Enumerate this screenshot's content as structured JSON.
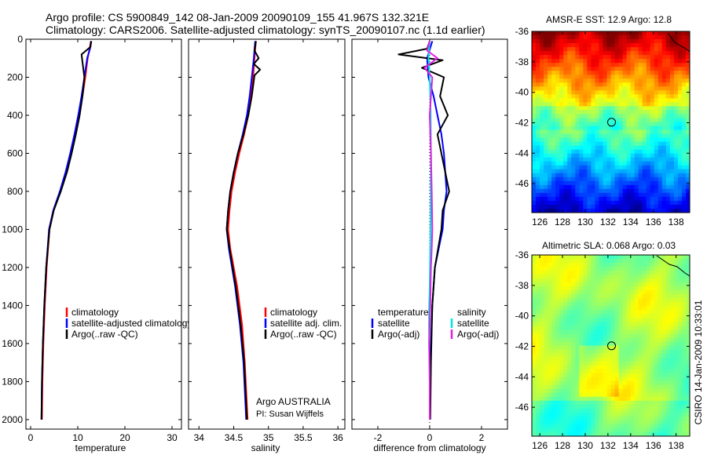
{
  "header": {
    "line1": "Argo profile: CS 5900849_142 08-Jan-2009 20090109_155 41.967S 132.321E",
    "line2": "Climatology: CARS2006. Satellite-adjusted climatology: synTS_20090107.nc (1.1d earlier)"
  },
  "side_label": "CSIRO 14-Jan-2009 10:33:01",
  "credit": {
    "line1": "Argo AUSTRALIA",
    "line2": "PI: Susan Wijffels"
  },
  "colors": {
    "climatology": "#ff0000",
    "satellite": "#0000ff",
    "argo": "#000000",
    "sat_salinity": "#00e5e5",
    "argo_salinity": "#e020e0"
  },
  "chart_data": [
    {
      "type": "line",
      "xlabel": "temperature",
      "xlim": [
        -1,
        32
      ],
      "xticks": [
        0,
        10,
        20,
        30
      ],
      "ylim": [
        2050,
        0
      ],
      "yticks": [
        0,
        200,
        400,
        600,
        800,
        1000,
        1200,
        1400,
        1600,
        1800,
        2000
      ],
      "legend": [
        "climatology",
        "satellite-adjusted climatology",
        "Argo(..raw -QC)"
      ],
      "series": [
        {
          "name": "climatology",
          "color": "red",
          "x": [
            12.8,
            12.5,
            12.1,
            11.6,
            11.0,
            10.3,
            9.5,
            8.6,
            7.6,
            6.3,
            4.9,
            4.0,
            3.4,
            3.0,
            2.7,
            2.5,
            2.4
          ],
          "y": [
            10,
            50,
            100,
            200,
            300,
            400,
            500,
            600,
            700,
            800,
            900,
            1000,
            1200,
            1400,
            1600,
            1800,
            2000
          ]
        },
        {
          "name": "satellite-adjusted climatology",
          "color": "blue",
          "x": [
            12.9,
            12.6,
            12.0,
            11.4,
            10.8,
            10.1,
            9.3,
            8.4,
            7.4,
            6.2,
            4.8,
            3.9,
            3.3,
            2.9,
            2.6,
            2.4,
            2.3
          ],
          "y": [
            10,
            50,
            100,
            200,
            300,
            400,
            500,
            600,
            700,
            800,
            900,
            1000,
            1200,
            1400,
            1600,
            1800,
            2000
          ]
        },
        {
          "name": "Argo(..raw -QC)",
          "color": "black",
          "x": [
            12.8,
            12.7,
            10.8,
            11.4,
            11.0,
            10.4,
            9.6,
            8.7,
            7.7,
            6.4,
            4.9,
            4.0,
            3.3,
            2.9,
            2.6,
            2.4,
            2.3
          ],
          "y": [
            10,
            40,
            80,
            200,
            300,
            400,
            500,
            600,
            700,
            800,
            900,
            1000,
            1200,
            1400,
            1600,
            1800,
            2000
          ]
        }
      ]
    },
    {
      "type": "line",
      "xlabel": "salinity",
      "xlim": [
        33.85,
        36.1
      ],
      "xticks": [
        34,
        34.5,
        35,
        35.5,
        36
      ],
      "ylim": [
        2050,
        0
      ],
      "yticks": [
        0,
        200,
        400,
        600,
        800,
        1000,
        1200,
        1400,
        1600,
        1800,
        2000
      ],
      "legend": [
        "climatology",
        "satellite adj. clim.",
        "Argo(..raw -QC)"
      ],
      "series": [
        {
          "name": "climatology",
          "color": "red",
          "x": [
            34.82,
            34.81,
            34.8,
            34.78,
            34.75,
            34.71,
            34.65,
            34.58,
            34.52,
            34.47,
            34.44,
            34.42,
            34.45,
            34.55,
            34.62,
            34.66,
            34.7
          ],
          "y": [
            10,
            50,
            100,
            200,
            300,
            400,
            500,
            600,
            700,
            800,
            900,
            1000,
            1100,
            1300,
            1500,
            1700,
            2000
          ]
        },
        {
          "name": "satellite adj. clim.",
          "color": "blue",
          "x": [
            34.81,
            34.8,
            34.79,
            34.76,
            34.73,
            34.69,
            34.63,
            34.56,
            34.5,
            34.45,
            34.42,
            34.4,
            34.43,
            34.52,
            34.59,
            34.64,
            34.68
          ],
          "y": [
            10,
            50,
            100,
            200,
            300,
            400,
            500,
            600,
            700,
            800,
            900,
            1000,
            1100,
            1300,
            1500,
            1700,
            2000
          ]
        },
        {
          "name": "Argo(..raw -QC)",
          "color": "black",
          "x": [
            34.82,
            34.8,
            34.86,
            34.79,
            34.88,
            34.8,
            34.76,
            34.71,
            34.64,
            34.56,
            34.5,
            34.45,
            34.42,
            34.4,
            34.44,
            34.53,
            34.6,
            34.65,
            34.69
          ],
          "y": [
            10,
            60,
            100,
            130,
            160,
            190,
            300,
            400,
            500,
            600,
            700,
            800,
            900,
            1000,
            1100,
            1300,
            1500,
            1700,
            2000
          ]
        }
      ]
    },
    {
      "type": "line",
      "xlabel": "difference from climatology",
      "xlim": [
        -3.0,
        3.0
      ],
      "xticks": [
        -2,
        0,
        2
      ],
      "ylim": [
        2050,
        0
      ],
      "yticks": [
        0,
        200,
        400,
        600,
        800,
        1000,
        1200,
        1400,
        1600,
        1800,
        2000
      ],
      "legend_groups": [
        {
          "title": "temperature",
          "items": [
            "satellite",
            "Argo(-adj)"
          ]
        },
        {
          "title": "salinity",
          "items": [
            "satellite",
            "Argo(-adj)"
          ]
        }
      ],
      "series": [
        {
          "name": "satellite",
          "group": "temperature",
          "color": "blue",
          "x": [
            0.1,
            -0.1,
            -0.05,
            0.15,
            0.3,
            0.45,
            0.55,
            0.6,
            0.65,
            0.55,
            0.5,
            0.35,
            0.2,
            0.1,
            0.05,
            0.02,
            0.0
          ],
          "y": [
            10,
            100,
            200,
            300,
            400,
            500,
            600,
            700,
            800,
            900,
            1000,
            1100,
            1200,
            1400,
            1600,
            1800,
            2000
          ]
        },
        {
          "name": "Argo(-adj)",
          "group": "temperature",
          "color": "black",
          "x": [
            0.0,
            -0.1,
            -1.2,
            0.5,
            -0.3,
            0.55,
            0.4,
            0.7,
            0.3,
            0.45,
            0.75,
            0.5,
            0.45,
            0.2,
            0.1,
            0.05,
            0.02
          ],
          "y": [
            10,
            50,
            80,
            110,
            150,
            200,
            300,
            400,
            500,
            600,
            800,
            900,
            1000,
            1200,
            1400,
            1700,
            2000
          ]
        },
        {
          "name": "satellite",
          "group": "salinity",
          "color": "cyan",
          "x": [
            0.0,
            -0.05,
            0.0,
            0.02,
            0.04,
            0.05,
            0.04,
            0.03,
            0.02,
            0.01,
            0.0,
            -0.02,
            -0.03,
            -0.02,
            0.0,
            0.0
          ],
          "y": [
            10,
            100,
            200,
            300,
            400,
            600,
            800,
            1000,
            1100,
            1200,
            1300,
            1400,
            1500,
            1600,
            1800,
            2000
          ]
        },
        {
          "name": "Argo(-adj)",
          "group": "salinity",
          "color": "magenta",
          "x": [
            0.0,
            -0.1,
            0.3,
            -0.2,
            0.1,
            0.0,
            0.05,
            0.08,
            0.1,
            0.08,
            0.05,
            0.02,
            0.0,
            -0.02,
            0.0,
            0.0
          ],
          "y": [
            10,
            60,
            100,
            150,
            200,
            400,
            600,
            800,
            1000,
            1100,
            1200,
            1400,
            1500,
            1600,
            1800,
            2000
          ]
        }
      ]
    },
    {
      "type": "heatmap",
      "title": "AMSR-E SST: 12.9 Argo: 12.8",
      "xlim": [
        125.3,
        139.2
      ],
      "xticks": [
        126,
        128,
        130,
        132,
        134,
        136,
        138
      ],
      "ylim": [
        -47.9,
        -36
      ],
      "yticks": [
        -36,
        -38,
        -40,
        -42,
        -44,
        -46
      ],
      "marker": {
        "lon": 132.321,
        "lat": -41.967
      },
      "colormap": "jet"
    },
    {
      "type": "heatmap",
      "title": "Altimetric SLA: 0.068 Argo: 0.03",
      "xlim": [
        125.3,
        139.2
      ],
      "xticks": [
        126,
        128,
        130,
        132,
        134,
        136,
        138
      ],
      "ylim": [
        -47.9,
        -36
      ],
      "yticks": [
        -36,
        -38,
        -40,
        -42,
        -44,
        -46
      ],
      "marker": {
        "lon": 132.321,
        "lat": -41.967
      },
      "colormap": "jet"
    }
  ]
}
